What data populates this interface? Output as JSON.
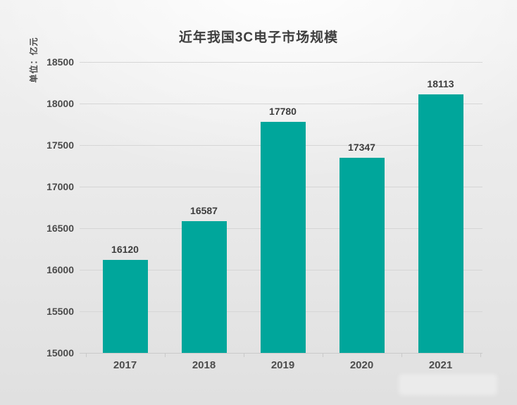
{
  "title": "近年我国3C电子市场规模",
  "unit_label": "单位：亿元",
  "chart_data": {
    "type": "bar",
    "categories": [
      "2017",
      "2018",
      "2019",
      "2020",
      "2021"
    ],
    "values": [
      16120,
      16587,
      17780,
      17347,
      18113
    ],
    "title": "近年我国3C电子市场规模",
    "xlabel": "",
    "ylabel": "单位：亿元",
    "ylim": [
      15000,
      18500
    ],
    "yticks": [
      15000,
      15500,
      16000,
      16500,
      17000,
      17500,
      18000,
      18500
    ],
    "grid": true,
    "legend": "none",
    "colors": {
      "bar": "#00a69b",
      "title_text": "#3e3e3e",
      "axis_text": "#4a4a4a",
      "value_text": "#3d3d3d",
      "gridline": "#d6d6d6",
      "background_top": "#f4f4f4",
      "background_bottom": "#e0e0e0"
    }
  }
}
